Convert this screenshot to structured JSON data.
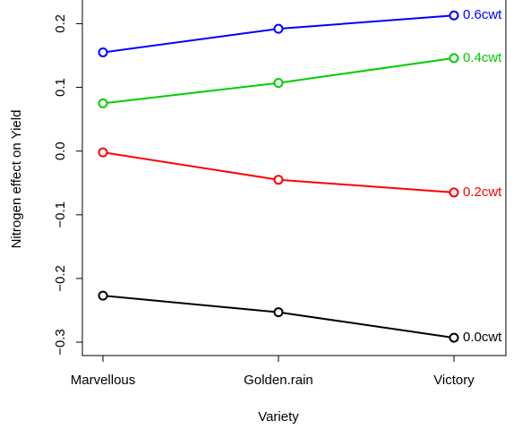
{
  "chart_data": {
    "type": "line",
    "x_label": "Variety",
    "y_label": "Nitrogen effect on Yield",
    "categories": [
      "Marvellous",
      "Golden.rain",
      "Victory"
    ],
    "series": [
      {
        "name": "0.0cwt",
        "color": "#000000",
        "values": [
          -0.227,
          -0.253,
          -0.293
        ]
      },
      {
        "name": "0.2cwt",
        "color": "#ff0000",
        "values": [
          -0.002,
          -0.045,
          -0.065
        ]
      },
      {
        "name": "0.4cwt",
        "color": "#00cd00",
        "values": [
          0.075,
          0.107,
          0.146
        ]
      },
      {
        "name": "0.6cwt",
        "color": "#0000ff",
        "values": [
          0.155,
          0.192,
          0.213
        ]
      }
    ],
    "ylim": [
      -0.321,
      0.24
    ],
    "yticks": [
      {
        "value": -0.3,
        "label": "−0.3"
      },
      {
        "value": -0.2,
        "label": "−0.2"
      },
      {
        "value": -0.1,
        "label": "−0.1"
      },
      {
        "value": 0,
        "label": "0.0"
      },
      0.1,
      0.2
    ]
  }
}
